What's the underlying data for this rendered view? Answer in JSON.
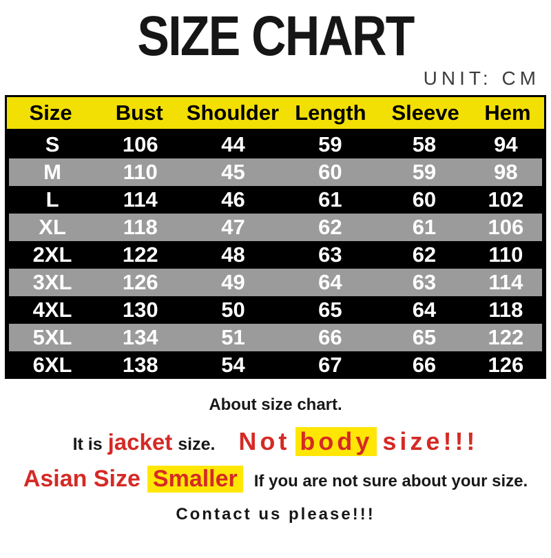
{
  "title": "SIZE CHART",
  "unit_label": "UNIT: CM",
  "table": {
    "headers": [
      "Size",
      "Bust",
      "Shoulder",
      "Length",
      "Sleeve",
      "Hem"
    ],
    "rows": [
      [
        "S",
        "106",
        "44",
        "59",
        "58",
        "94"
      ],
      [
        "M",
        "110",
        "45",
        "60",
        "59",
        "98"
      ],
      [
        "L",
        "114",
        "46",
        "61",
        "60",
        "102"
      ],
      [
        "XL",
        "118",
        "47",
        "62",
        "61",
        "106"
      ],
      [
        "2XL",
        "122",
        "48",
        "63",
        "62",
        "110"
      ],
      [
        "3XL",
        "126",
        "49",
        "64",
        "63",
        "114"
      ],
      [
        "4XL",
        "130",
        "50",
        "65",
        "64",
        "118"
      ],
      [
        "5XL",
        "134",
        "51",
        "66",
        "65",
        "122"
      ],
      [
        "6XL",
        "138",
        "54",
        "67",
        "66",
        "126"
      ]
    ]
  },
  "notes": {
    "about": "About size chart.",
    "it_is": "It is",
    "jacket": "jacket",
    "size_word": "size.",
    "not_word": "Not",
    "body_word": "body",
    "size_excl": "size!!!",
    "asian_size": "Asian Size",
    "smaller": "Smaller",
    "not_sure": "If you are not sure about your size.",
    "contact": "Contact us please!!!"
  },
  "colors": {
    "header_yellow": "#F2DF04",
    "highlight_yellow": "#FFE604",
    "row_black": "#000000",
    "row_gray": "#9B9B9B",
    "accent_red": "#D52A25",
    "unit_gray": "#3D3D3D",
    "row_text_white": "#FFFFFF"
  },
  "chart_data": {
    "type": "table",
    "title": "SIZE CHART",
    "unit": "CM",
    "columns": [
      "Size",
      "Bust",
      "Shoulder",
      "Length",
      "Sleeve",
      "Hem"
    ],
    "rows": [
      [
        "S",
        106,
        44,
        59,
        58,
        94
      ],
      [
        "M",
        110,
        45,
        60,
        59,
        98
      ],
      [
        "L",
        114,
        46,
        61,
        60,
        102
      ],
      [
        "XL",
        118,
        47,
        62,
        61,
        106
      ],
      [
        "2XL",
        122,
        48,
        63,
        62,
        110
      ],
      [
        "3XL",
        126,
        49,
        64,
        63,
        114
      ],
      [
        "4XL",
        130,
        50,
        65,
        64,
        118
      ],
      [
        "5XL",
        134,
        51,
        66,
        65,
        122
      ],
      [
        "6XL",
        138,
        54,
        67,
        66,
        126
      ]
    ],
    "notes": [
      "About size chart.",
      "It is jacket size. Not body size!!!",
      "Asian Size Smaller If you are not sure about your size.",
      "Contact us please!!!"
    ]
  }
}
